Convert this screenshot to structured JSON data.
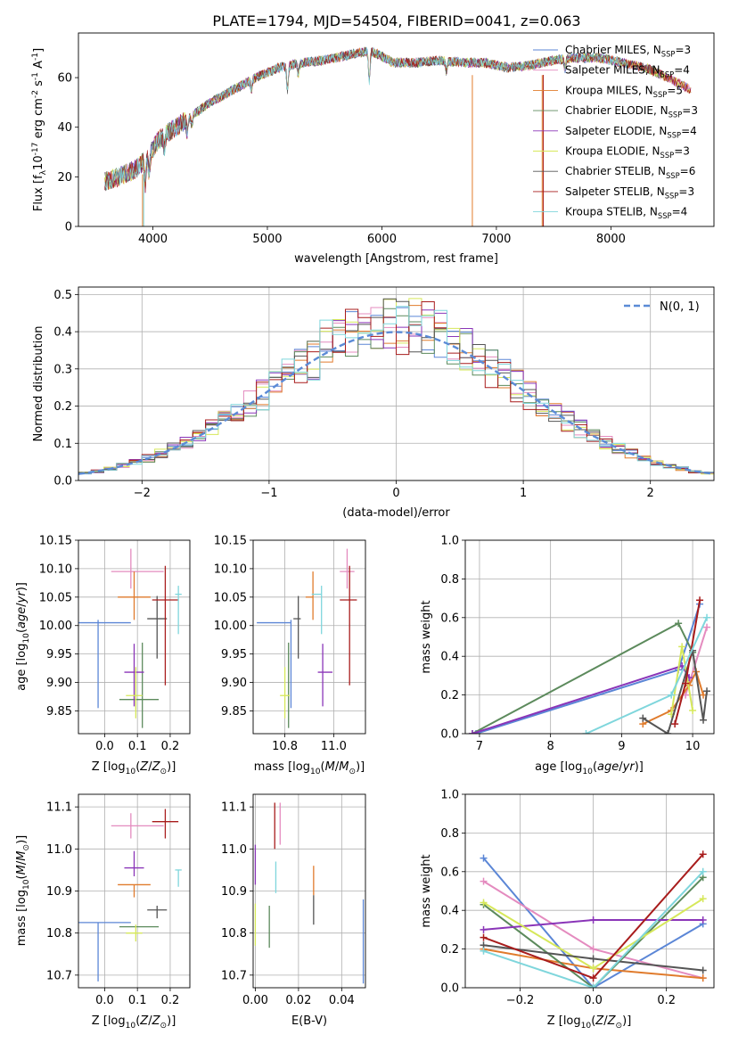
{
  "figure": {
    "title": "PLATE=1794, MJD=54504, FIBERID=0041, z=0.063"
  },
  "colors": {
    "Chabrier MILES": "#5b86d6",
    "Salpeter MILES": "#e48bbf",
    "Kroupa MILES": "#e07b2c",
    "Chabrier ELODIE": "#5c8a5c",
    "Salpeter ELODIE": "#8a35b8",
    "Kroupa ELODIE": "#d6e85a",
    "Chabrier STELIB": "#555555",
    "Salpeter STELIB": "#a81c1c",
    "Kroupa STELIB": "#7fd6dc"
  },
  "chart_data": [
    {
      "id": "spectrum",
      "type": "line",
      "xlabel": "wavelength [Angstrom, rest frame]",
      "ylabel_prefix": "Flux [f",
      "ylabel_suffix": "10",
      "ylabel_exp": "-17",
      "ylabel_units": " erg cm",
      "ylabel_units_exp": "-2",
      "ylabel_s": " s",
      "ylabel_s_exp": "-1",
      "ylabel_A": " A",
      "ylabel_A_exp": "-1",
      "ylabel_close": "]",
      "xlim": [
        3350,
        8900
      ],
      "ylim": [
        0,
        78
      ],
      "xticks": [
        4000,
        5000,
        6000,
        7000,
        8000
      ],
      "yticks": [
        0,
        20,
        40,
        60
      ],
      "continuum": [
        [
          3580,
          18
        ],
        [
          3700,
          20
        ],
        [
          3850,
          23
        ],
        [
          3950,
          28
        ],
        [
          4050,
          35
        ],
        [
          4200,
          40
        ],
        [
          4350,
          45
        ],
        [
          4500,
          50
        ],
        [
          4700,
          55
        ],
        [
          4900,
          60
        ],
        [
          5100,
          64
        ],
        [
          5300,
          66
        ],
        [
          5500,
          67
        ],
        [
          5700,
          69
        ],
        [
          5900,
          71
        ],
        [
          6100,
          66
        ],
        [
          6300,
          66
        ],
        [
          6500,
          67
        ],
        [
          6700,
          66
        ],
        [
          6900,
          66
        ],
        [
          7100,
          64
        ],
        [
          7300,
          65
        ],
        [
          7500,
          67
        ],
        [
          7700,
          68
        ],
        [
          7900,
          68
        ],
        [
          8100,
          66
        ],
        [
          8300,
          64
        ],
        [
          8500,
          60
        ],
        [
          8700,
          55
        ]
      ],
      "legend": [
        {
          "label": "Chabrier MILES, N",
          "nssp": "=3"
        },
        {
          "label": "Salpeter MILES, N",
          "nssp": "=4"
        },
        {
          "label": "Kroupa MILES, N",
          "nssp": "=5"
        },
        {
          "label": "Chabrier ELODIE, N",
          "nssp": "=3"
        },
        {
          "label": "Salpeter ELODIE, N",
          "nssp": "=4"
        },
        {
          "label": "Kroupa ELODIE, N",
          "nssp": "=3"
        },
        {
          "label": "Chabrier STELIB, N",
          "nssp": "=6"
        },
        {
          "label": "Salpeter STELIB, N",
          "nssp": "=3"
        },
        {
          "label": "Kroupa STELIB, N",
          "nssp": "=4"
        }
      ],
      "legend_sub": "SSP"
    },
    {
      "id": "residuals",
      "type": "histogram",
      "xlabel": "(data-model)/error",
      "ylabel": "Normed distribution",
      "xlim": [
        -2.5,
        2.5
      ],
      "ylim": [
        0,
        0.52
      ],
      "xticks": [
        -2,
        -1,
        0,
        1,
        2
      ],
      "yticks": [
        0,
        0.1,
        0.2,
        0.3,
        0.4,
        0.5
      ],
      "bin_width": 0.1,
      "reference_label": "N(0, 1)"
    },
    {
      "id": "age_vs_Z",
      "type": "errorbar",
      "xlabel": "Z [log10(Z/Z⊙)]",
      "ylabel": "age  [log10(age/yr)]",
      "xlim": [
        -0.08,
        0.26
      ],
      "ylim": [
        9.81,
        10.15
      ],
      "xticks": [
        0.0,
        0.1,
        0.2
      ],
      "yticks": [
        9.85,
        9.9,
        9.95,
        10.0,
        10.05,
        10.1,
        10.15
      ],
      "points": [
        {
          "model": "Chabrier MILES",
          "x": -0.02,
          "xerr": [
            0.06,
            0.1
          ],
          "y": 10.005,
          "yerr": [
            0.15,
            0.005
          ]
        },
        {
          "model": "Salpeter MILES",
          "x": 0.08,
          "xerr": [
            0.06,
            0.1
          ],
          "y": 10.095,
          "yerr": [
            0.03,
            0.04
          ]
        },
        {
          "model": "Kroupa MILES",
          "x": 0.09,
          "xerr": [
            0.05,
            0.05
          ],
          "y": 10.05,
          "yerr": [
            0.04,
            0.045
          ]
        },
        {
          "model": "Chabrier ELODIE",
          "x": 0.115,
          "xerr": [
            0.07,
            0.05
          ],
          "y": 9.87,
          "yerr": [
            0.05,
            0.1
          ]
        },
        {
          "model": "Salpeter ELODIE",
          "x": 0.09,
          "xerr": [
            0.03,
            0.03
          ],
          "y": 9.918,
          "yerr": [
            0.06,
            0.05
          ]
        },
        {
          "model": "Kroupa ELODIE",
          "x": 0.095,
          "xerr": [
            0.03,
            0.02
          ],
          "y": 9.877,
          "yerr": [
            0.04,
            0.05
          ]
        },
        {
          "model": "Chabrier STELIB",
          "x": 0.16,
          "xerr": [
            0.03,
            0.03
          ],
          "y": 10.012,
          "yerr": [
            0.07,
            0.04
          ]
        },
        {
          "model": "Salpeter STELIB",
          "x": 0.185,
          "xerr": [
            0.04,
            0.04
          ],
          "y": 10.045,
          "yerr": [
            0.15,
            0.06
          ]
        },
        {
          "model": "Kroupa STELIB",
          "x": 0.225,
          "xerr": [
            0.01,
            0.01
          ],
          "y": 10.055,
          "yerr": [
            0.07,
            0.015
          ]
        }
      ]
    },
    {
      "id": "age_vs_mass",
      "type": "errorbar",
      "xlabel": "mass [log10(M/M⊙)]",
      "ylabel": "",
      "xlim": [
        10.67,
        11.13
      ],
      "ylim": [
        9.81,
        10.15
      ],
      "xticks": [
        10.8,
        11.0
      ],
      "yticks": [
        9.85,
        9.9,
        9.95,
        10.0,
        10.05,
        10.1,
        10.15
      ],
      "points": [
        {
          "model": "Chabrier MILES",
          "x": 10.825,
          "xerr": [
            0.14,
            0.0
          ],
          "y": 10.005,
          "yerr": [
            0.15,
            0.005
          ]
        },
        {
          "model": "Salpeter MILES",
          "x": 11.055,
          "xerr": [
            0.03,
            0.03
          ],
          "y": 10.095,
          "yerr": [
            0.03,
            0.04
          ]
        },
        {
          "model": "Kroupa MILES",
          "x": 10.915,
          "xerr": [
            0.03,
            0.0
          ],
          "y": 10.05,
          "yerr": [
            0.04,
            0.045
          ]
        },
        {
          "model": "Chabrier ELODIE",
          "x": 10.815,
          "xerr": [
            0.0,
            0.0
          ],
          "y": 9.87,
          "yerr": [
            0.05,
            0.1
          ]
        },
        {
          "model": "Salpeter ELODIE",
          "x": 10.955,
          "xerr": [
            0.02,
            0.04
          ],
          "y": 9.918,
          "yerr": [
            0.06,
            0.05
          ]
        },
        {
          "model": "Kroupa ELODIE",
          "x": 10.8,
          "xerr": [
            0.02,
            0.02
          ],
          "y": 9.877,
          "yerr": [
            0.04,
            0.05
          ]
        },
        {
          "model": "Chabrier STELIB",
          "x": 10.855,
          "xerr": [
            0.02,
            0.01
          ],
          "y": 10.012,
          "yerr": [
            0.07,
            0.04
          ]
        },
        {
          "model": "Salpeter STELIB",
          "x": 11.065,
          "xerr": [
            0.04,
            0.03
          ],
          "y": 10.045,
          "yerr": [
            0.15,
            0.06
          ]
        },
        {
          "model": "Kroupa STELIB",
          "x": 10.95,
          "xerr": [
            0.04,
            0.0
          ],
          "y": 10.055,
          "yerr": [
            0.07,
            0.015
          ]
        }
      ]
    },
    {
      "id": "mass_weight_vs_age",
      "type": "line",
      "xlabel": "age  [log10(age/yr)]",
      "ylabel": "mass weight",
      "xlim": [
        6.8,
        10.3
      ],
      "ylim": [
        0,
        1
      ],
      "xticks": [
        7,
        8,
        9,
        10
      ],
      "yticks": [
        0,
        0.2,
        0.4,
        0.6,
        0.8,
        1.0
      ],
      "series": [
        {
          "model": "Chabrier MILES",
          "x": [
            6.95,
            9.8,
            10.1
          ],
          "y": [
            0.0,
            0.33,
            0.67
          ]
        },
        {
          "model": "Salpeter MILES",
          "x": [
            9.9,
            10.2
          ],
          "y": [
            0.2,
            0.55
          ]
        },
        {
          "model": "Kroupa MILES",
          "x": [
            9.3,
            9.7,
            9.95,
            10.05,
            10.15
          ],
          "y": [
            0.05,
            0.12,
            0.25,
            0.32,
            0.2
          ]
        },
        {
          "model": "Chabrier ELODIE",
          "x": [
            6.9,
            9.8,
            10.0
          ],
          "y": [
            0.0,
            0.57,
            0.42
          ]
        },
        {
          "model": "Salpeter ELODIE",
          "x": [
            6.9,
            9.85,
            9.95
          ],
          "y": [
            0.0,
            0.35,
            0.29
          ]
        },
        {
          "model": "Kroupa ELODIE",
          "x": [
            9.7,
            9.85,
            10.0
          ],
          "y": [
            0.1,
            0.45,
            0.12
          ]
        },
        {
          "model": "Chabrier STELIB",
          "x": [
            9.3,
            9.65,
            10.0,
            10.15,
            10.2
          ],
          "y": [
            0.08,
            0.0,
            0.43,
            0.07,
            0.22
          ]
        },
        {
          "model": "Salpeter STELIB",
          "x": [
            9.75,
            9.9,
            10.1
          ],
          "y": [
            0.05,
            0.26,
            0.69
          ]
        },
        {
          "model": "Kroupa STELIB",
          "x": [
            8.5,
            9.7,
            10.2
          ],
          "y": [
            0.0,
            0.2,
            0.6
          ]
        }
      ]
    },
    {
      "id": "mass_vs_Z",
      "type": "errorbar",
      "xlabel": "Z [log10(Z/Z⊙)]",
      "ylabel": "mass [log10(M/M⊙)]",
      "xlim": [
        -0.08,
        0.26
      ],
      "ylim": [
        10.67,
        11.13
      ],
      "xticks": [
        0.0,
        0.1,
        0.2
      ],
      "yticks": [
        10.7,
        10.8,
        10.9,
        11.0,
        11.1
      ],
      "points": [
        {
          "model": "Chabrier MILES",
          "x": -0.02,
          "xerr": [
            0.06,
            0.1
          ],
          "y": 10.825,
          "yerr": [
            0.14,
            0.0
          ]
        },
        {
          "model": "Salpeter MILES",
          "x": 0.08,
          "xerr": [
            0.06,
            0.1
          ],
          "y": 11.055,
          "yerr": [
            0.03,
            0.03
          ]
        },
        {
          "model": "Kroupa MILES",
          "x": 0.09,
          "xerr": [
            0.05,
            0.05
          ],
          "y": 10.915,
          "yerr": [
            0.03,
            0.0
          ]
        },
        {
          "model": "Chabrier ELODIE",
          "x": 0.115,
          "xerr": [
            0.07,
            0.05
          ],
          "y": 10.815,
          "yerr": [
            0.0,
            0.0
          ]
        },
        {
          "model": "Salpeter ELODIE",
          "x": 0.09,
          "xerr": [
            0.03,
            0.03
          ],
          "y": 10.955,
          "yerr": [
            0.02,
            0.04
          ]
        },
        {
          "model": "Kroupa ELODIE",
          "x": 0.095,
          "xerr": [
            0.03,
            0.02
          ],
          "y": 10.8,
          "yerr": [
            0.02,
            0.02
          ]
        },
        {
          "model": "Chabrier STELIB",
          "x": 0.16,
          "xerr": [
            0.03,
            0.03
          ],
          "y": 10.855,
          "yerr": [
            0.02,
            0.01
          ]
        },
        {
          "model": "Salpeter STELIB",
          "x": 0.185,
          "xerr": [
            0.04,
            0.04
          ],
          "y": 11.065,
          "yerr": [
            0.04,
            0.03
          ]
        },
        {
          "model": "Kroupa STELIB",
          "x": 0.225,
          "xerr": [
            0.01,
            0.01
          ],
          "y": 10.95,
          "yerr": [
            0.04,
            0.0
          ]
        }
      ]
    },
    {
      "id": "mass_vs_ebv",
      "type": "errorbar",
      "xlabel": "E(B-V)",
      "ylabel": "",
      "xlim": [
        -0.001,
        0.051
      ],
      "ylim": [
        10.67,
        11.13
      ],
      "xticks": [
        0.0,
        0.02,
        0.04
      ],
      "yticks": [
        10.7,
        10.8,
        10.9,
        11.0,
        11.1
      ],
      "points": [
        {
          "model": "Chabrier MILES",
          "x": 0.05,
          "y": 10.8,
          "yerr": [
            0.12,
            0.08
          ]
        },
        {
          "model": "Salpeter MILES",
          "x": 0.0115,
          "y": 11.06,
          "yerr": [
            0.05,
            0.05
          ]
        },
        {
          "model": "Kroupa MILES",
          "x": 0.027,
          "y": 10.925,
          "yerr": [
            0.035,
            0.035
          ]
        },
        {
          "model": "Chabrier ELODIE",
          "x": 0.0065,
          "y": 10.815,
          "yerr": [
            0.05,
            0.05
          ]
        },
        {
          "model": "Salpeter ELODIE",
          "x": 0.0,
          "y": 10.965,
          "yerr": [
            0.05,
            0.045
          ]
        },
        {
          "model": "Kroupa ELODIE",
          "x": 0.0,
          "y": 10.82,
          "yerr": [
            0.05,
            0.05
          ]
        },
        {
          "model": "Chabrier STELIB",
          "x": 0.027,
          "y": 10.855,
          "yerr": [
            0.035,
            0.035
          ]
        },
        {
          "model": "Salpeter STELIB",
          "x": 0.009,
          "y": 11.06,
          "yerr": [
            0.06,
            0.05
          ]
        },
        {
          "model": "Kroupa STELIB",
          "x": 0.0095,
          "y": 10.935,
          "yerr": [
            0.04,
            0.035
          ]
        }
      ]
    },
    {
      "id": "mass_weight_vs_Z",
      "type": "line",
      "xlabel": "Z [log10(Z/Z⊙)]",
      "ylabel": "mass weight",
      "xlim": [
        -0.35,
        0.33
      ],
      "ylim": [
        0,
        1
      ],
      "xticks": [
        -0.2,
        0.0,
        0.2
      ],
      "yticks": [
        0,
        0.2,
        0.4,
        0.6,
        0.8,
        1.0
      ],
      "series": [
        {
          "model": "Chabrier MILES",
          "x": [
            -0.3,
            0.0,
            0.3
          ],
          "y": [
            0.67,
            0.0,
            0.33
          ]
        },
        {
          "model": "Salpeter MILES",
          "x": [
            -0.3,
            0.0,
            0.3
          ],
          "y": [
            0.55,
            0.2,
            0.05
          ]
        },
        {
          "model": "Kroupa MILES",
          "x": [
            -0.3,
            0.0,
            0.3
          ],
          "y": [
            0.2,
            0.1,
            0.05
          ]
        },
        {
          "model": "Chabrier ELODIE",
          "x": [
            -0.3,
            0.0,
            0.3
          ],
          "y": [
            0.43,
            0.0,
            0.57
          ]
        },
        {
          "model": "Salpeter ELODIE",
          "x": [
            -0.3,
            0.0,
            0.3
          ],
          "y": [
            0.3,
            0.35,
            0.35
          ]
        },
        {
          "model": "Kroupa ELODIE",
          "x": [
            -0.3,
            0.0,
            0.3
          ],
          "y": [
            0.44,
            0.1,
            0.46
          ]
        },
        {
          "model": "Chabrier STELIB",
          "x": [
            -0.3,
            0.0,
            0.3
          ],
          "y": [
            0.22,
            0.15,
            0.09
          ]
        },
        {
          "model": "Salpeter STELIB",
          "x": [
            -0.3,
            0.0,
            0.3
          ],
          "y": [
            0.26,
            0.05,
            0.69
          ]
        },
        {
          "model": "Kroupa STELIB",
          "x": [
            -0.3,
            0.0,
            0.3
          ],
          "y": [
            0.19,
            0.0,
            0.6
          ]
        }
      ]
    }
  ]
}
